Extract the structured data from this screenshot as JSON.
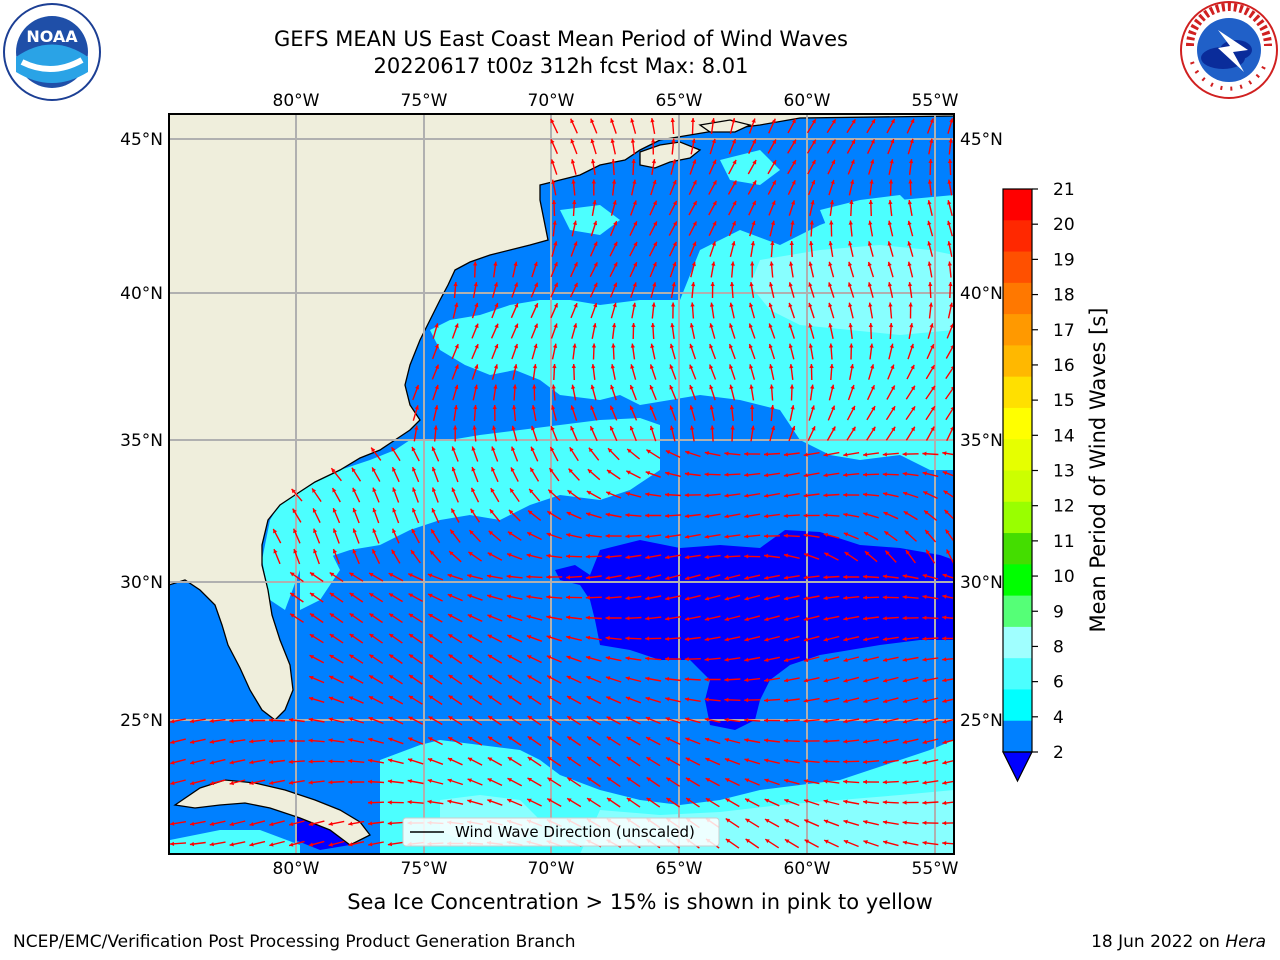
{
  "title_line1": "GEFS MEAN US East Coast Mean Period of Wind Waves",
  "title_line2": "20220617 t00z 312h fcst   Max: 8.01",
  "subcaption": "Sea Ice Concentration > 15% is shown in pink to yellow",
  "footer_left": "NCEP/EMC/Verification Post Processing Product Generation Branch",
  "footer_date": "18 Jun 2022 on",
  "footer_host": "Hera",
  "logos": {
    "left": "NOAA",
    "right": "NATIONAL WEATHER SERVICE"
  },
  "map": {
    "lon_labels": [
      "80°W",
      "75°W",
      "70°W",
      "65°W",
      "60°W",
      "55°W"
    ],
    "lat_labels": [
      "45°N",
      "40°N",
      "35°N",
      "30°N",
      "25°N"
    ],
    "legend_text": "Wind Wave Direction (unscaled)",
    "colors": {
      "land": "#efeedc",
      "band_2_4": "#0080ff",
      "band_4_6": "#00ffff",
      "band_6_8": "#4cffff",
      "below_2": "#0000ff",
      "arrow": "#ff0000"
    }
  },
  "colorbar": {
    "label": "Mean Period of Wind Waves [s]",
    "ticks": [
      "21",
      "20",
      "19",
      "18",
      "17",
      "16",
      "15",
      "14",
      "13",
      "12",
      "11",
      "10",
      "9",
      "8",
      "6",
      "4",
      "2"
    ],
    "colors_top_to_bottom": [
      "#ff0000",
      "#ff2800",
      "#ff5000",
      "#ff7800",
      "#ff9900",
      "#ffb800",
      "#ffe000",
      "#ffff00",
      "#e6ff00",
      "#ccff00",
      "#99ff00",
      "#44dd00",
      "#00ff00",
      "#55ff77",
      "#a0ffff",
      "#4cffff",
      "#00ffff",
      "#0080ff"
    ],
    "extend_color": "#0000ff"
  }
}
